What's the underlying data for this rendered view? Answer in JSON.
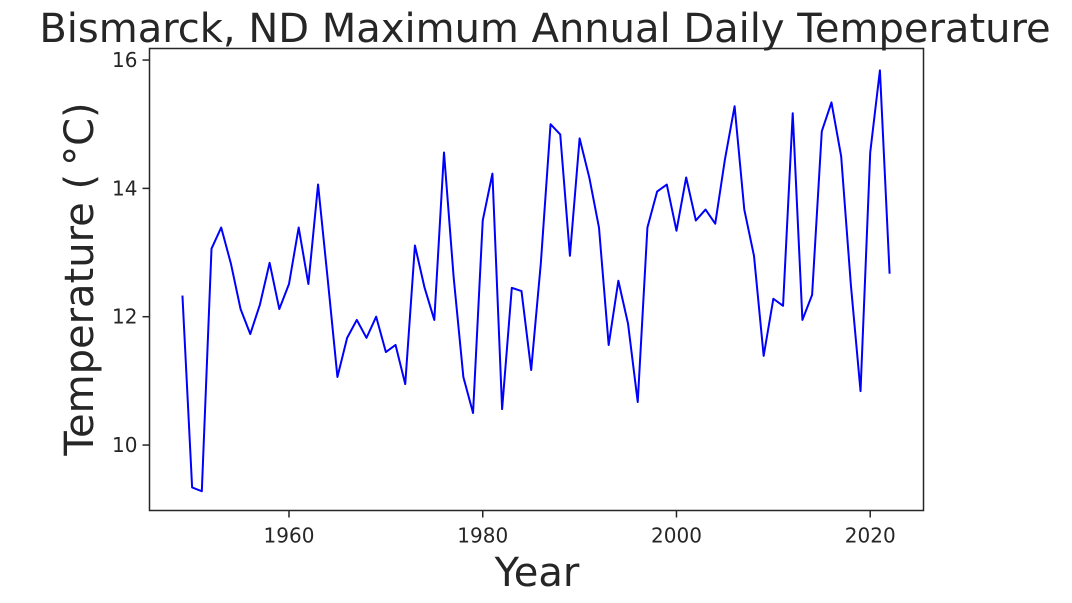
{
  "chart_data": {
    "type": "line",
    "title": "Bismarck, ND Maximum Annual Daily Temperature",
    "xlabel": "Year",
    "ylabel": "Temperature ( $^\\circ$C)",
    "ylabel_display": "Temperature ( °C)",
    "xlim": [
      1945.6,
      2025.5
    ],
    "ylim": [
      8.98,
      16.18
    ],
    "xticks": [
      1960,
      1980,
      2000,
      2020
    ],
    "yticks": [
      10,
      12,
      14,
      16
    ],
    "grid": false,
    "legend": "none",
    "line_color": "#0000ff",
    "x": [
      1949,
      1950,
      1951,
      1952,
      1953,
      1954,
      1955,
      1956,
      1957,
      1958,
      1959,
      1960,
      1961,
      1962,
      1963,
      1964,
      1965,
      1966,
      1967,
      1968,
      1969,
      1970,
      1971,
      1972,
      1973,
      1974,
      1975,
      1976,
      1977,
      1978,
      1979,
      1980,
      1981,
      1982,
      1983,
      1984,
      1985,
      1986,
      1987,
      1988,
      1989,
      1990,
      1991,
      1992,
      1993,
      1994,
      1995,
      1996,
      1997,
      1998,
      1999,
      2000,
      2001,
      2002,
      2003,
      2004,
      2005,
      2006,
      2007,
      2008,
      2009,
      2010,
      2011,
      2012,
      2013,
      2014,
      2015,
      2016,
      2017,
      2018,
      2019,
      2020,
      2021,
      2022
    ],
    "series": [
      {
        "values": [
          12.33,
          9.34,
          9.28,
          13.06,
          13.39,
          12.83,
          12.12,
          11.73,
          12.19,
          12.84,
          12.12,
          12.51,
          13.39,
          12.51,
          14.06,
          12.58,
          11.06,
          11.67,
          11.95,
          11.67,
          12.0,
          11.45,
          11.56,
          10.95,
          13.11,
          12.45,
          11.95,
          14.56,
          12.61,
          11.06,
          10.5,
          13.5,
          14.23,
          10.56,
          12.45,
          12.4,
          11.17,
          12.84,
          15.0,
          14.84,
          12.95,
          14.78,
          14.17,
          13.39,
          11.56,
          12.56,
          11.89,
          10.67,
          13.39,
          13.95,
          14.06,
          13.34,
          14.17,
          13.5,
          13.67,
          13.45,
          14.45,
          15.28,
          13.67,
          12.95,
          11.39,
          12.28,
          12.17,
          15.17,
          11.95,
          12.34,
          14.89,
          15.34,
          14.5,
          12.5,
          10.84,
          14.56,
          15.84,
          12.67
        ]
      }
    ]
  }
}
